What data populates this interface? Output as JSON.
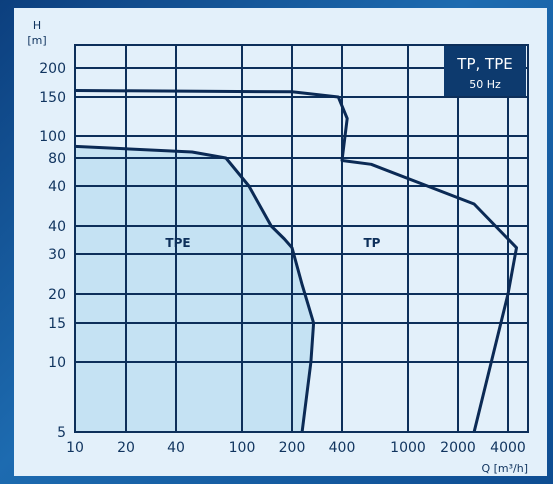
{
  "chart_data": {
    "type": "area",
    "title": "TP, TPE",
    "subtitle": "50 Hz",
    "ylabel": "H",
    "yunit": "[m]",
    "xlabel": "Q [m³/h]",
    "x_ticks": [
      "10",
      "20",
      "40",
      "100",
      "200",
      "400",
      "1000",
      "2000",
      "4000"
    ],
    "y_ticks": [
      "200",
      "150",
      "100",
      "80",
      "40",
      "40",
      "30",
      "20",
      "15",
      "10",
      "5"
    ],
    "grid": true,
    "series": [
      {
        "name": "TPE",
        "fill": "#c5e2f3",
        "points": [
          [
            10,
            90
          ],
          [
            50,
            85
          ],
          [
            80,
            80
          ],
          [
            110,
            60
          ],
          [
            150,
            40
          ],
          [
            180,
            35
          ],
          [
            200,
            32
          ],
          [
            230,
            22
          ],
          [
            250,
            18
          ],
          [
            270,
            15
          ],
          [
            260,
            10
          ],
          [
            230,
            5
          ]
        ]
      },
      {
        "name": "TP",
        "fill": "none",
        "points": [
          [
            10,
            160
          ],
          [
            200,
            158
          ],
          [
            380,
            150
          ],
          [
            430,
            120
          ],
          [
            400,
            78
          ],
          [
            600,
            75
          ],
          [
            2500,
            50
          ],
          [
            4400,
            32
          ],
          [
            4000,
            20
          ],
          [
            2500,
            5
          ]
        ]
      }
    ],
    "colors": {
      "line": "#0b2a55",
      "grid": "#0d2f5a",
      "plot_bg": "#e3f0fa",
      "tpe_fill": "#c5e2f3",
      "title_bg": "#0d3a6e"
    }
  }
}
